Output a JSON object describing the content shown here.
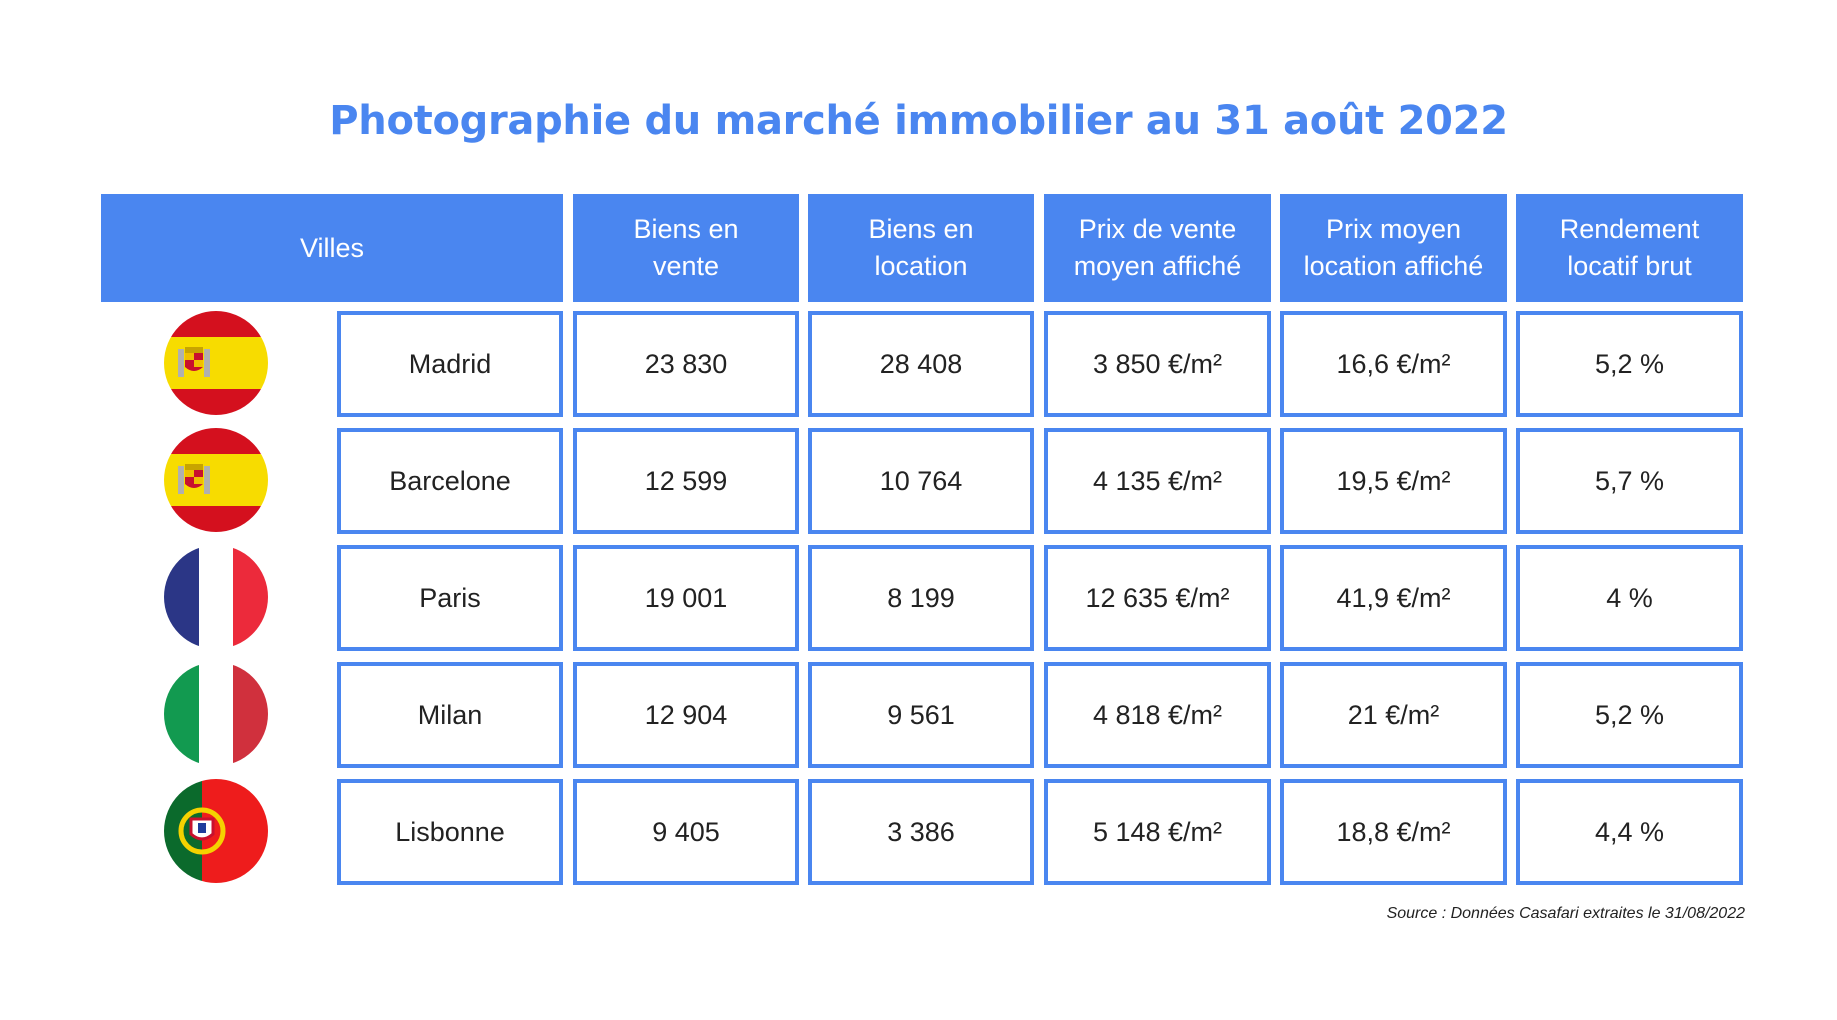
{
  "title": "Photographie du marché immobilier au 31 août 2022",
  "headers": {
    "villes": "Villes",
    "biens_vente": [
      "Biens en",
      "vente"
    ],
    "biens_location": [
      "Biens en",
      "location"
    ],
    "prix_vente": [
      "Prix de vente",
      "moyen affiché"
    ],
    "prix_location": [
      "Prix moyen",
      "location affiché"
    ],
    "rendement": [
      "Rendement",
      "locatif brut"
    ]
  },
  "rows": [
    {
      "flag": "spain-flag-icon",
      "city": "Madrid",
      "vente": "23 830",
      "location": "28 408",
      "prix_vente": "3 850 €/m²",
      "prix_location": "16,6 €/m²",
      "rendement": "5,2 %"
    },
    {
      "flag": "spain-flag-icon",
      "city": "Barcelone",
      "vente": "12 599",
      "location": "10 764",
      "prix_vente": "4 135 €/m²",
      "prix_location": "19,5 €/m²",
      "rendement": "5,7 %"
    },
    {
      "flag": "france-flag-icon",
      "city": "Paris",
      "vente": "19 001",
      "location": "8 199",
      "prix_vente": "12 635 €/m²",
      "prix_location": "41,9 €/m²",
      "rendement": "4 %"
    },
    {
      "flag": "italy-flag-icon",
      "city": "Milan",
      "vente": "12 904",
      "location": "9 561",
      "prix_vente": "4 818 €/m²",
      "prix_location": "21 €/m²",
      "rendement": "5,2 %"
    },
    {
      "flag": "portugal-flag-icon",
      "city": "Lisbonne",
      "vente": "9 405",
      "location": "3 386",
      "prix_vente": "5 148 €/m²",
      "prix_location": "18,8 €/m²",
      "rendement": "4,4 %"
    }
  ],
  "source": "Source : Données Casafari extraites le 31/08/2022",
  "colors": {
    "accent": "#4a86f0"
  }
}
